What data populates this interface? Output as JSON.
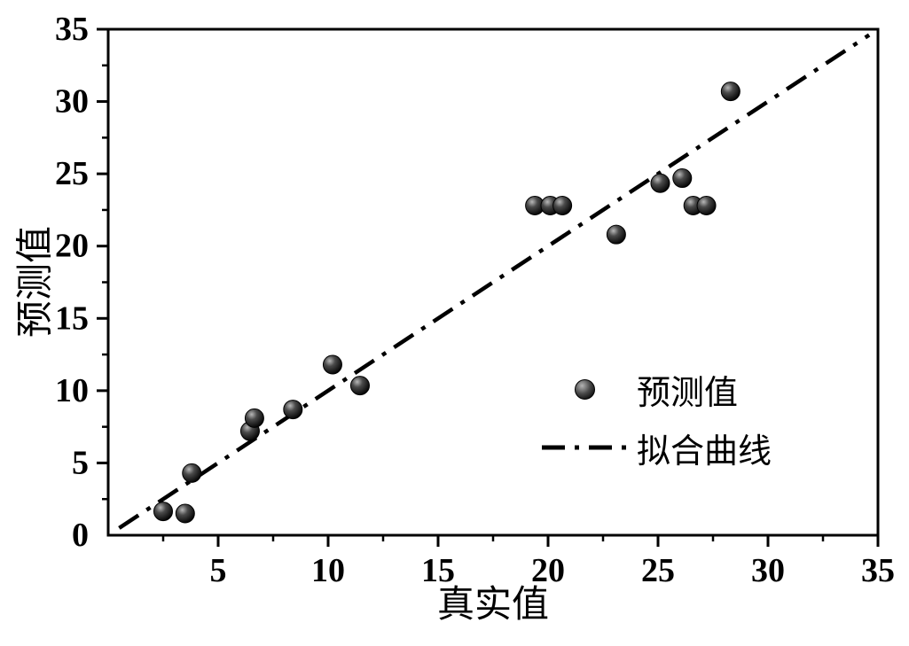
{
  "figure": {
    "background": "#ffffff",
    "axis_color": "#000000"
  },
  "chart_data": {
    "type": "scatter",
    "title": "",
    "xlabel": "真实值",
    "ylabel": "预测值",
    "xlim": [
      0,
      35
    ],
    "ylim": [
      0,
      35
    ],
    "xticks": [
      0,
      5,
      10,
      15,
      20,
      25,
      30,
      35
    ],
    "yticks": [
      0,
      5,
      10,
      15,
      20,
      25,
      30,
      35
    ],
    "xticklabels": [
      "",
      "5",
      "10",
      "15",
      "20",
      "25",
      "30",
      "35"
    ],
    "yticklabels": [
      "0",
      "5",
      "10",
      "15",
      "20",
      "25",
      "30",
      "35"
    ],
    "minor_tick_step": 2.5,
    "grid": false,
    "legend_position": "inside-right",
    "series": [
      {
        "name": "预测值",
        "type": "scatter",
        "marker": "sphere",
        "color": "#1a1a1a",
        "points": [
          [
            2.5,
            1.65
          ],
          [
            3.5,
            1.5
          ],
          [
            3.8,
            4.3
          ],
          [
            6.45,
            7.2
          ],
          [
            6.65,
            8.1
          ],
          [
            8.4,
            8.7
          ],
          [
            10.2,
            11.8
          ],
          [
            11.45,
            10.35
          ],
          [
            19.4,
            22.8
          ],
          [
            20.1,
            22.8
          ],
          [
            20.65,
            22.8
          ],
          [
            23.1,
            20.8
          ],
          [
            25.1,
            24.35
          ],
          [
            26.1,
            24.7
          ],
          [
            26.6,
            22.8
          ],
          [
            27.2,
            22.8
          ],
          [
            28.3,
            30.7
          ]
        ]
      },
      {
        "name": "拟合曲线",
        "type": "line",
        "style": "dash-dot",
        "color": "#000000",
        "points": [
          [
            0.5,
            0.5
          ],
          [
            34.6,
            34.6
          ]
        ]
      }
    ]
  }
}
